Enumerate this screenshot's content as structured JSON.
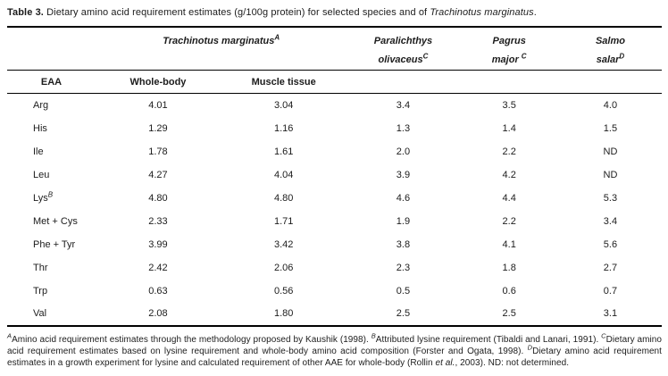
{
  "colors": {
    "text": "#1c1c1c",
    "rule": "#000000",
    "background": "#ffffff"
  },
  "title": {
    "prefix": "Table 3.",
    "body": " Dietary amino acid requirement estimates (g/100g protein) for selected species and of ",
    "species": "Trachinotus marginatus",
    "suffix": "."
  },
  "table": {
    "group_header": {
      "name": "Trachinotus marginatus",
      "sup": "A"
    },
    "species_columns": [
      {
        "line1": "Paralichthys",
        "line2": "olivaceus",
        "sup": "C"
      },
      {
        "line1": "Pagrus",
        "line2": "major ",
        "sup": "C"
      },
      {
        "line1": "Salmo",
        "line2": "salar",
        "sup": "D"
      }
    ],
    "subheaders": {
      "eaa": "EAA",
      "whole_body": "Whole-body",
      "muscle_tissue": "Muscle tissue"
    },
    "rows": [
      {
        "eaa": "Arg",
        "sup": "",
        "values": [
          "4.01",
          "3.04",
          "3.4",
          "3.5",
          "4.0"
        ]
      },
      {
        "eaa": "His",
        "sup": "",
        "values": [
          "1.29",
          "1.16",
          "1.3",
          "1.4",
          "1.5"
        ]
      },
      {
        "eaa": "Ile",
        "sup": "",
        "values": [
          "1.78",
          "1.61",
          "2.0",
          "2.2",
          "ND"
        ]
      },
      {
        "eaa": "Leu",
        "sup": "",
        "values": [
          "4.27",
          "4.04",
          "3.9",
          "4.2",
          "ND"
        ]
      },
      {
        "eaa": "Lys",
        "sup": "B",
        "values": [
          "4.80",
          "4.80",
          "4.6",
          "4.4",
          "5.3"
        ]
      },
      {
        "eaa": "Met + Cys",
        "sup": "",
        "values": [
          "2.33",
          "1.71",
          "1.9",
          "2.2",
          "3.4"
        ]
      },
      {
        "eaa": "Phe + Tyr",
        "sup": "",
        "values": [
          "3.99",
          "3.42",
          "3.8",
          "4.1",
          "5.6"
        ]
      },
      {
        "eaa": "Thr",
        "sup": "",
        "values": [
          "2.42",
          "2.06",
          "2.3",
          "1.8",
          "2.7"
        ]
      },
      {
        "eaa": "Trp",
        "sup": "",
        "values": [
          "0.63",
          "0.56",
          "0.5",
          "0.6",
          "0.7"
        ]
      },
      {
        "eaa": "Val",
        "sup": "",
        "values": [
          "2.08",
          "1.80",
          "2.5",
          "2.5",
          "3.1"
        ]
      }
    ]
  },
  "footnote": {
    "segments": [
      {
        "sup": true,
        "italic": true,
        "text": "A"
      },
      {
        "text": "Amino acid requirement estimates through the methodology proposed by Kaushik (1998). "
      },
      {
        "sup": true,
        "italic": true,
        "text": "B"
      },
      {
        "text": "Attributed lysine requirement (Tibaldi and Lanari, 1991). "
      },
      {
        "sup": true,
        "italic": true,
        "text": "C"
      },
      {
        "text": "Dietary amino acid requirement estimates based on lysine requirement and whole-body amino acid composition (Forster and Ogata, 1998). "
      },
      {
        "sup": true,
        "italic": true,
        "text": "D"
      },
      {
        "text": "Dietary amino acid requirement estimates in a growth experiment for lysine and calculated requirement of other AAE for whole-body (Rollin "
      },
      {
        "italic": true,
        "text": "et al."
      },
      {
        "text": ", 2003). ND: not determined."
      }
    ]
  }
}
